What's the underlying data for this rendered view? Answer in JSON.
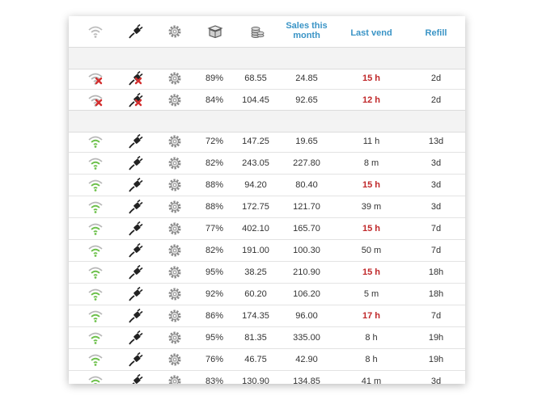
{
  "header": {
    "sales_this_month": "Sales this month",
    "last_vend": "Last vend",
    "refill": "Refill"
  },
  "icons": {
    "signal": "wifi-signal-icon",
    "power": "power-plug-icon",
    "settings": "gear-icon",
    "stock": "vending-box-icon",
    "cash": "coin-stack-icon"
  },
  "colors": {
    "header_text": "#3a94c6",
    "hot_vend": "#c0282a",
    "signal_ok": "#6cc04a",
    "signal_error": "#d32f2f"
  },
  "offline_rows": [
    {
      "status": "error",
      "stock": "89%",
      "cash": "68.55",
      "sales": "24.85",
      "last_vend": "15 h",
      "hot": true,
      "refill": "2d"
    },
    {
      "status": "error",
      "stock": "84%",
      "cash": "104.45",
      "sales": "92.65",
      "last_vend": "12 h",
      "hot": true,
      "refill": "2d"
    }
  ],
  "online_rows": [
    {
      "status": "ok",
      "stock": "72%",
      "cash": "147.25",
      "sales": "19.65",
      "last_vend": "11 h",
      "hot": false,
      "refill": "13d"
    },
    {
      "status": "ok",
      "stock": "82%",
      "cash": "243.05",
      "sales": "227.80",
      "last_vend": "8 m",
      "hot": false,
      "refill": "3d"
    },
    {
      "status": "ok",
      "stock": "88%",
      "cash": "94.20",
      "sales": "80.40",
      "last_vend": "15 h",
      "hot": true,
      "refill": "3d"
    },
    {
      "status": "ok",
      "stock": "88%",
      "cash": "172.75",
      "sales": "121.70",
      "last_vend": "39 m",
      "hot": false,
      "refill": "3d"
    },
    {
      "status": "ok",
      "stock": "77%",
      "cash": "402.10",
      "sales": "165.70",
      "last_vend": "15 h",
      "hot": true,
      "refill": "7d"
    },
    {
      "status": "ok",
      "stock": "82%",
      "cash": "191.00",
      "sales": "100.30",
      "last_vend": "50 m",
      "hot": false,
      "refill": "7d"
    },
    {
      "status": "ok",
      "stock": "95%",
      "cash": "38.25",
      "sales": "210.90",
      "last_vend": "15 h",
      "hot": true,
      "refill": "18h"
    },
    {
      "status": "ok",
      "stock": "92%",
      "cash": "60.20",
      "sales": "106.20",
      "last_vend": "5 m",
      "hot": false,
      "refill": "18h"
    },
    {
      "status": "ok",
      "stock": "86%",
      "cash": "174.35",
      "sales": "96.00",
      "last_vend": "17 h",
      "hot": true,
      "refill": "7d"
    },
    {
      "status": "ok",
      "stock": "95%",
      "cash": "81.35",
      "sales": "335.00",
      "last_vend": "8 h",
      "hot": false,
      "refill": "19h"
    },
    {
      "status": "ok",
      "stock": "76%",
      "cash": "46.75",
      "sales": "42.90",
      "last_vend": "8 h",
      "hot": false,
      "refill": "19h"
    },
    {
      "status": "ok",
      "stock": "83%",
      "cash": "130.90",
      "sales": "134.85",
      "last_vend": "41 m",
      "hot": false,
      "refill": "3d"
    }
  ]
}
